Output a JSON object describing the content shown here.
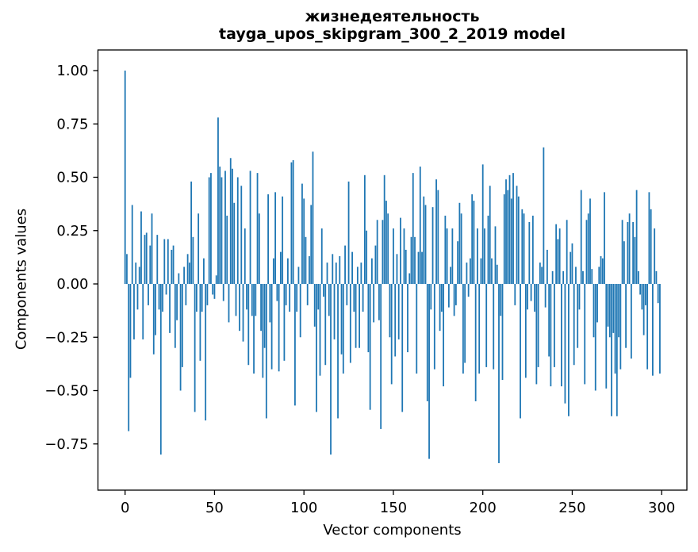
{
  "title": {
    "line1": "жизнедеятельность",
    "line2": "tayga_upos_skipgram_300_2_2019 model"
  },
  "colors": {
    "bar": "#1f77b4",
    "spine": "#000000",
    "text": "#000000",
    "background": "#ffffff"
  },
  "chart_data": {
    "type": "bar",
    "title": "жизнедеятельность",
    "subtitle": "tayga_upos_skipgram_300_2_2019 model",
    "xlabel": "Vector components",
    "ylabel": "Components values",
    "x_ticks": [
      0,
      50,
      100,
      150,
      200,
      250,
      300
    ],
    "y_ticks": [
      1.0,
      0.75,
      0.5,
      0.25,
      0.0,
      -0.25,
      -0.5,
      -0.75
    ],
    "xlim": [
      -15.4,
      314.4
    ],
    "ylim": [
      -0.97,
      1.1
    ],
    "grid": false,
    "legend": null,
    "x_start": 0,
    "values": [
      1.0,
      0.14,
      -0.69,
      -0.44,
      0.37,
      -0.26,
      0.1,
      -0.12,
      0.08,
      0.34,
      -0.26,
      0.23,
      0.24,
      -0.1,
      0.18,
      0.33,
      -0.33,
      -0.24,
      0.23,
      -0.12,
      -0.8,
      -0.13,
      0.21,
      -0.05,
      0.21,
      -0.23,
      0.16,
      0.18,
      -0.3,
      -0.17,
      0.05,
      -0.5,
      -0.39,
      0.08,
      -0.1,
      0.14,
      0.1,
      0.48,
      0.22,
      -0.6,
      -0.13,
      0.33,
      -0.36,
      -0.13,
      0.12,
      -0.64,
      -0.1,
      0.5,
      0.52,
      -0.05,
      -0.07,
      0.04,
      0.78,
      0.55,
      0.5,
      -0.08,
      0.53,
      0.32,
      -0.18,
      0.59,
      0.54,
      0.38,
      -0.15,
      0.5,
      -0.22,
      0.46,
      -0.27,
      0.26,
      -0.12,
      -0.38,
      0.53,
      -0.15,
      -0.42,
      -0.15,
      0.52,
      0.33,
      -0.22,
      -0.44,
      -0.3,
      -0.63,
      0.42,
      -0.18,
      -0.4,
      0.12,
      0.43,
      -0.08,
      -0.41,
      0.15,
      0.41,
      -0.36,
      -0.1,
      0.12,
      -0.13,
      0.57,
      0.58,
      -0.57,
      -0.13,
      0.08,
      -0.25,
      0.47,
      0.4,
      0.22,
      -0.1,
      0.13,
      0.37,
      0.62,
      -0.2,
      -0.6,
      -0.12,
      -0.43,
      0.26,
      -0.06,
      -0.38,
      0.1,
      -0.15,
      -0.8,
      0.14,
      -0.26,
      0.1,
      -0.63,
      0.13,
      -0.33,
      -0.42,
      0.18,
      -0.1,
      0.48,
      -0.37,
      0.15,
      -0.13,
      -0.3,
      0.08,
      -0.3,
      0.1,
      -0.13,
      0.51,
      0.25,
      -0.32,
      -0.59,
      0.12,
      -0.18,
      0.18,
      0.3,
      -0.17,
      -0.68,
      0.3,
      0.51,
      0.39,
      0.33,
      -0.25,
      -0.47,
      0.26,
      -0.34,
      0.14,
      -0.26,
      0.31,
      -0.6,
      0.26,
      0.16,
      -0.32,
      0.05,
      0.22,
      0.52,
      0.22,
      -0.42,
      0.15,
      0.55,
      0.15,
      0.41,
      0.37,
      -0.55,
      -0.82,
      -0.12,
      0.36,
      -0.4,
      0.49,
      0.44,
      -0.22,
      -0.13,
      -0.48,
      0.32,
      0.26,
      -0.11,
      0.08,
      0.26,
      -0.15,
      -0.1,
      0.2,
      0.38,
      0.33,
      -0.42,
      -0.37,
      0.1,
      -0.06,
      0.12,
      0.42,
      0.39,
      -0.55,
      0.26,
      -0.42,
      0.12,
      0.56,
      0.26,
      -0.39,
      0.32,
      0.46,
      0.12,
      -0.4,
      0.27,
      0.09,
      -0.84,
      -0.15,
      -0.45,
      0.42,
      0.49,
      0.44,
      0.51,
      0.4,
      0.52,
      -0.1,
      0.46,
      0.41,
      -0.63,
      0.35,
      0.33,
      -0.44,
      -0.12,
      0.29,
      -0.08,
      0.32,
      -0.13,
      -0.47,
      -0.39,
      0.1,
      0.08,
      0.64,
      -0.11,
      0.16,
      -0.34,
      -0.48,
      0.06,
      -0.39,
      0.28,
      0.21,
      0.26,
      -0.48,
      0.06,
      -0.56,
      0.3,
      -0.62,
      0.15,
      0.19,
      -0.38,
      0.08,
      -0.3,
      -0.12,
      0.44,
      0.06,
      -0.47,
      0.3,
      0.33,
      0.4,
      0.07,
      -0.25,
      -0.5,
      -0.18,
      0.08,
      0.13,
      0.12,
      0.43,
      -0.49,
      -0.2,
      -0.25,
      -0.62,
      -0.23,
      -0.42,
      -0.62,
      -0.25,
      -0.4,
      0.3,
      0.2,
      -0.3,
      0.29,
      0.33,
      -0.35,
      0.29,
      0.22,
      0.44,
      0.06,
      -0.05,
      -0.12,
      -0.24,
      -0.1,
      -0.4,
      0.43,
      0.35,
      -0.43,
      0.26,
      0.06,
      -0.09,
      -0.42
    ]
  }
}
